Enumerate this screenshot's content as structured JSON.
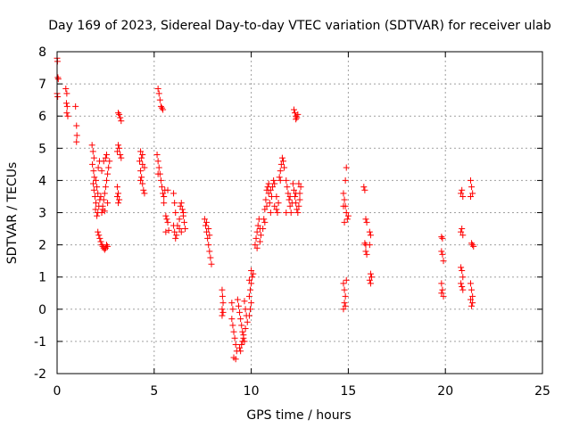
{
  "chart_data": {
    "type": "scatter",
    "title": "Day 169 of 2023, Sidereal Day-to-day VTEC variation (SDTVAR) for receiver ulab",
    "xlabel": "GPS time / hours",
    "ylabel": "SDTVAR / TECUs",
    "xlim": [
      0,
      25
    ],
    "ylim": [
      -2,
      8
    ],
    "xticks": [
      0,
      5,
      10,
      15,
      20,
      25
    ],
    "yticks": [
      -2,
      -1,
      0,
      1,
      2,
      3,
      4,
      5,
      6,
      7,
      8
    ],
    "grid": true,
    "marker": "+",
    "series": [
      {
        "name": "SDTVAR",
        "color": "#ff0000",
        "points": [
          [
            0.0,
            7.8
          ],
          [
            0.02,
            7.7
          ],
          [
            0.04,
            7.2
          ],
          [
            0.06,
            7.15
          ],
          [
            0.0,
            6.7
          ],
          [
            0.03,
            6.6
          ],
          [
            0.45,
            6.85
          ],
          [
            0.5,
            6.7
          ],
          [
            0.48,
            6.4
          ],
          [
            0.52,
            6.3
          ],
          [
            0.55,
            6.0
          ],
          [
            0.5,
            6.1
          ],
          [
            0.95,
            6.3
          ],
          [
            1.0,
            5.7
          ],
          [
            1.02,
            5.4
          ],
          [
            1.0,
            5.2
          ],
          [
            1.8,
            5.1
          ],
          [
            1.85,
            4.9
          ],
          [
            1.9,
            4.7
          ],
          [
            1.82,
            4.5
          ],
          [
            1.88,
            4.3
          ],
          [
            1.92,
            4.1
          ],
          [
            1.86,
            3.9
          ],
          [
            1.9,
            3.7
          ],
          [
            1.95,
            3.5
          ],
          [
            2.0,
            3.3
          ],
          [
            1.98,
            3.1
          ],
          [
            2.05,
            2.9
          ],
          [
            2.1,
            3.0
          ],
          [
            2.15,
            3.2
          ],
          [
            2.2,
            3.4
          ],
          [
            2.1,
            3.6
          ],
          [
            2.05,
            3.8
          ],
          [
            2.0,
            4.0
          ],
          [
            2.12,
            4.4
          ],
          [
            2.18,
            4.6
          ],
          [
            2.1,
            2.4
          ],
          [
            2.15,
            2.3
          ],
          [
            2.2,
            2.2
          ],
          [
            2.25,
            2.1
          ],
          [
            2.3,
            2.0
          ],
          [
            2.35,
            1.95
          ],
          [
            2.4,
            1.9
          ],
          [
            2.45,
            1.85
          ],
          [
            2.5,
            1.9
          ],
          [
            2.55,
            2.0
          ],
          [
            2.6,
            1.95
          ],
          [
            2.3,
            3.0
          ],
          [
            2.35,
            3.2
          ],
          [
            2.4,
            3.4
          ],
          [
            2.45,
            3.6
          ],
          [
            2.5,
            3.8
          ],
          [
            2.55,
            4.0
          ],
          [
            2.6,
            4.2
          ],
          [
            2.65,
            4.4
          ],
          [
            2.4,
            4.6
          ],
          [
            2.5,
            4.7
          ],
          [
            2.55,
            4.8
          ],
          [
            2.7,
            4.6
          ],
          [
            2.3,
            4.3
          ],
          [
            2.25,
            3.5
          ],
          [
            2.35,
            3.1
          ],
          [
            2.45,
            3.05
          ],
          [
            2.6,
            3.3
          ],
          [
            3.1,
            4.9
          ],
          [
            3.15,
            5.1
          ],
          [
            3.2,
            5.0
          ],
          [
            3.25,
            4.8
          ],
          [
            3.3,
            4.7
          ],
          [
            3.1,
            3.8
          ],
          [
            3.15,
            3.6
          ],
          [
            3.2,
            3.4
          ],
          [
            3.15,
            3.3
          ],
          [
            3.1,
            3.5
          ],
          [
            3.15,
            6.1
          ],
          [
            3.2,
            6.05
          ],
          [
            3.25,
            5.95
          ],
          [
            3.3,
            5.85
          ],
          [
            4.3,
            4.9
          ],
          [
            4.35,
            4.7
          ],
          [
            4.4,
            4.5
          ],
          [
            4.3,
            4.3
          ],
          [
            4.35,
            4.1
          ],
          [
            4.4,
            3.9
          ],
          [
            4.45,
            3.7
          ],
          [
            4.5,
            3.6
          ],
          [
            4.3,
            4.0
          ],
          [
            4.25,
            4.6
          ],
          [
            4.4,
            4.8
          ],
          [
            4.5,
            4.4
          ],
          [
            5.2,
            6.85
          ],
          [
            5.25,
            6.7
          ],
          [
            5.3,
            6.5
          ],
          [
            5.35,
            6.3
          ],
          [
            5.4,
            6.25
          ],
          [
            5.45,
            6.2
          ],
          [
            5.15,
            4.8
          ],
          [
            5.2,
            4.6
          ],
          [
            5.25,
            4.4
          ],
          [
            5.3,
            4.2
          ],
          [
            5.35,
            4.0
          ],
          [
            5.4,
            3.8
          ],
          [
            5.45,
            3.6
          ],
          [
            5.5,
            3.5
          ],
          [
            5.2,
            4.2
          ],
          [
            5.55,
            3.7
          ],
          [
            5.7,
            3.7
          ],
          [
            5.5,
            3.3
          ],
          [
            5.6,
            2.9
          ],
          [
            5.65,
            2.8
          ],
          [
            5.7,
            2.7
          ],
          [
            5.6,
            2.4
          ],
          [
            5.75,
            2.45
          ],
          [
            6.0,
            3.6
          ],
          [
            6.05,
            3.3
          ],
          [
            6.1,
            3.0
          ],
          [
            6.0,
            2.6
          ],
          [
            6.05,
            2.4
          ],
          [
            6.1,
            2.2
          ],
          [
            6.15,
            2.3
          ],
          [
            6.2,
            2.6
          ],
          [
            6.3,
            2.8
          ],
          [
            6.35,
            3.2
          ],
          [
            6.4,
            3.3
          ],
          [
            6.45,
            3.1
          ],
          [
            6.5,
            2.9
          ],
          [
            6.55,
            2.7
          ],
          [
            6.6,
            2.5
          ],
          [
            6.5,
            3.0
          ],
          [
            6.4,
            2.4
          ],
          [
            6.3,
            2.5
          ],
          [
            7.6,
            2.8
          ],
          [
            7.65,
            2.6
          ],
          [
            7.7,
            2.4
          ],
          [
            7.75,
            2.2
          ],
          [
            7.8,
            2.0
          ],
          [
            7.85,
            1.8
          ],
          [
            7.9,
            1.6
          ],
          [
            7.95,
            1.4
          ],
          [
            7.8,
            2.5
          ],
          [
            7.7,
            2.7
          ],
          [
            7.85,
            2.3
          ],
          [
            8.5,
            0.6
          ],
          [
            8.52,
            0.4
          ],
          [
            8.55,
            0.2
          ],
          [
            8.5,
            0.0
          ],
          [
            8.55,
            -0.1
          ],
          [
            8.5,
            -0.2
          ],
          [
            9.0,
            0.2
          ],
          [
            9.05,
            0.0
          ],
          [
            9.0,
            -0.3
          ],
          [
            9.05,
            -0.5
          ],
          [
            9.1,
            -0.7
          ],
          [
            9.15,
            -0.9
          ],
          [
            9.2,
            -1.1
          ],
          [
            9.25,
            -1.3
          ],
          [
            9.1,
            -1.5
          ],
          [
            9.2,
            -1.55
          ],
          [
            9.3,
            0.3
          ],
          [
            9.35,
            0.1
          ],
          [
            9.4,
            -0.1
          ],
          [
            9.45,
            -0.3
          ],
          [
            9.5,
            -0.5
          ],
          [
            9.55,
            -0.7
          ],
          [
            9.6,
            -0.9
          ],
          [
            9.5,
            -1.1
          ],
          [
            9.45,
            -1.3
          ],
          [
            9.4,
            -1.2
          ],
          [
            9.55,
            -1.0
          ],
          [
            9.65,
            0.25
          ],
          [
            9.7,
            0.0
          ],
          [
            9.75,
            -0.2
          ],
          [
            9.8,
            -0.4
          ],
          [
            9.7,
            -0.6
          ],
          [
            9.6,
            -0.8
          ],
          [
            9.65,
            -1.0
          ],
          [
            9.9,
            -0.2
          ],
          [
            9.95,
            0.0
          ],
          [
            10.0,
            0.2
          ],
          [
            9.9,
            0.4
          ],
          [
            9.95,
            0.6
          ],
          [
            10.0,
            0.8
          ],
          [
            10.05,
            1.0
          ],
          [
            10.0,
            1.2
          ],
          [
            9.9,
            0.9
          ],
          [
            10.1,
            1.1
          ],
          [
            10.2,
            2.0
          ],
          [
            10.25,
            2.2
          ],
          [
            10.3,
            2.4
          ],
          [
            10.35,
            2.6
          ],
          [
            10.4,
            2.8
          ],
          [
            10.45,
            2.5
          ],
          [
            10.5,
            2.3
          ],
          [
            10.3,
            1.9
          ],
          [
            10.45,
            2.1
          ],
          [
            10.6,
            2.5
          ],
          [
            10.65,
            2.8
          ],
          [
            10.7,
            3.1
          ],
          [
            10.75,
            3.4
          ],
          [
            10.8,
            3.7
          ],
          [
            10.85,
            3.8
          ],
          [
            10.9,
            3.6
          ],
          [
            10.95,
            3.3
          ],
          [
            11.0,
            3.0
          ],
          [
            10.7,
            2.7
          ],
          [
            10.8,
            3.2
          ],
          [
            11.05,
            3.5
          ],
          [
            11.1,
            3.8
          ],
          [
            11.15,
            4.0
          ],
          [
            11.2,
            3.9
          ],
          [
            11.0,
            3.7
          ],
          [
            10.9,
            3.9
          ],
          [
            11.2,
            3.2
          ],
          [
            11.3,
            3.1
          ],
          [
            11.35,
            3.0
          ],
          [
            11.4,
            3.3
          ],
          [
            11.3,
            3.5
          ],
          [
            11.45,
            4.1
          ],
          [
            11.5,
            4.3
          ],
          [
            11.55,
            4.5
          ],
          [
            11.6,
            4.7
          ],
          [
            11.65,
            4.6
          ],
          [
            11.5,
            4.0
          ],
          [
            11.7,
            4.4
          ],
          [
            11.8,
            4.0
          ],
          [
            11.85,
            3.8
          ],
          [
            11.9,
            3.6
          ],
          [
            11.95,
            3.4
          ],
          [
            12.0,
            3.2
          ],
          [
            12.05,
            3.0
          ],
          [
            11.8,
            3.0
          ],
          [
            12.0,
            3.5
          ],
          [
            12.1,
            3.3
          ],
          [
            12.15,
            3.9
          ],
          [
            12.2,
            3.7
          ],
          [
            12.25,
            3.5
          ],
          [
            12.3,
            3.3
          ],
          [
            12.35,
            3.1
          ],
          [
            12.4,
            3.0
          ],
          [
            12.45,
            3.2
          ],
          [
            12.5,
            3.4
          ],
          [
            12.5,
            3.6
          ],
          [
            12.55,
            3.8
          ],
          [
            12.45,
            3.9
          ],
          [
            12.3,
            3.6
          ],
          [
            12.2,
            6.2
          ],
          [
            12.25,
            6.1
          ],
          [
            12.3,
            6.0
          ],
          [
            12.35,
            5.95
          ],
          [
            12.4,
            6.05
          ],
          [
            12.3,
            5.9
          ],
          [
            14.75,
            3.6
          ],
          [
            14.8,
            3.4
          ],
          [
            14.85,
            3.2
          ],
          [
            14.9,
            3.0
          ],
          [
            14.95,
            2.8
          ],
          [
            14.8,
            2.7
          ],
          [
            14.85,
            4.0
          ],
          [
            14.9,
            4.4
          ],
          [
            15.0,
            2.9
          ],
          [
            14.75,
            3.2
          ],
          [
            14.75,
            0.8
          ],
          [
            14.8,
            0.6
          ],
          [
            14.85,
            0.4
          ],
          [
            14.8,
            0.2
          ],
          [
            14.75,
            0.0
          ],
          [
            14.9,
            0.9
          ],
          [
            14.85,
            0.1
          ],
          [
            15.8,
            3.8
          ],
          [
            15.85,
            3.7
          ],
          [
            15.9,
            2.8
          ],
          [
            15.95,
            2.7
          ],
          [
            15.85,
            2.05
          ],
          [
            15.9,
            2.0
          ],
          [
            15.9,
            1.8
          ],
          [
            15.95,
            1.7
          ],
          [
            16.1,
            2.4
          ],
          [
            16.15,
            2.3
          ],
          [
            16.1,
            2.0
          ],
          [
            16.15,
            1.1
          ],
          [
            16.2,
            1.0
          ],
          [
            16.1,
            0.9
          ],
          [
            16.15,
            0.8
          ],
          [
            19.8,
            2.25
          ],
          [
            19.85,
            2.2
          ],
          [
            19.8,
            1.8
          ],
          [
            19.85,
            1.7
          ],
          [
            19.9,
            1.5
          ],
          [
            19.8,
            0.8
          ],
          [
            19.85,
            0.6
          ],
          [
            19.9,
            0.4
          ],
          [
            19.8,
            0.5
          ],
          [
            20.8,
            3.6
          ],
          [
            20.85,
            3.7
          ],
          [
            20.9,
            3.5
          ],
          [
            20.85,
            2.5
          ],
          [
            20.8,
            2.4
          ],
          [
            20.9,
            2.3
          ],
          [
            20.8,
            1.3
          ],
          [
            20.85,
            1.2
          ],
          [
            20.9,
            1.0
          ],
          [
            20.8,
            0.8
          ],
          [
            20.85,
            0.7
          ],
          [
            20.9,
            0.6
          ],
          [
            21.3,
            4.0
          ],
          [
            21.35,
            3.8
          ],
          [
            21.4,
            3.6
          ],
          [
            21.3,
            3.5
          ],
          [
            21.35,
            2.05
          ],
          [
            21.4,
            2.0
          ],
          [
            21.45,
            1.95
          ],
          [
            21.3,
            0.8
          ],
          [
            21.35,
            0.6
          ],
          [
            21.4,
            0.4
          ],
          [
            21.3,
            0.3
          ],
          [
            21.35,
            0.1
          ],
          [
            21.4,
            0.2
          ]
        ]
      }
    ]
  }
}
